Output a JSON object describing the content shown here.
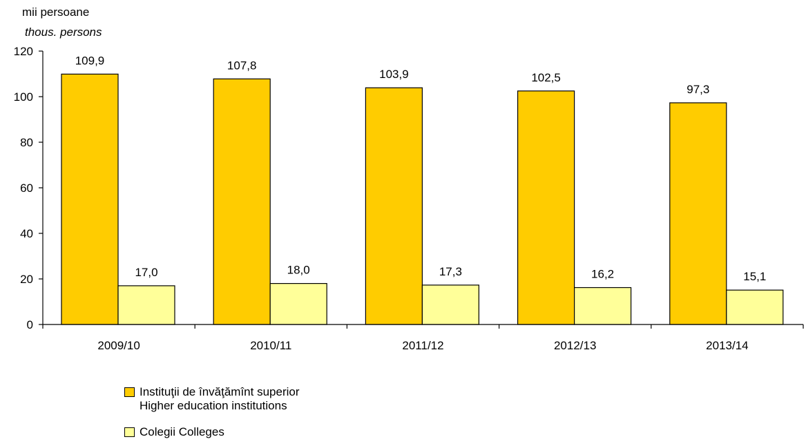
{
  "chart_data": {
    "type": "bar",
    "y_unit_ro": "mii persoane",
    "y_unit_en": "thous. persons",
    "categories": [
      "2009/10",
      "2010/11",
      "2011/12",
      "2012/13",
      "2013/14"
    ],
    "series": [
      {
        "name_ro": "Instituţii de învăţămînt superior",
        "name_en": "Higher education institutions",
        "values": [
          109.9,
          107.8,
          103.9,
          102.5,
          97.3
        ],
        "labels": [
          "109,9",
          "107,8",
          "103,9",
          "102,5",
          "97,3"
        ],
        "color": "#FFCC00"
      },
      {
        "name": "Colegii Colleges",
        "values": [
          17.0,
          18.0,
          17.3,
          16.2,
          15.1
        ],
        "labels": [
          "17,0",
          "18,0",
          "17,3",
          "16,2",
          "15,1"
        ],
        "color": "#FFFF99"
      }
    ],
    "ylim": [
      0,
      120
    ],
    "yticks": [
      0,
      20,
      40,
      60,
      80,
      100,
      120
    ],
    "grid": false,
    "legend_position": "bottom-left"
  }
}
